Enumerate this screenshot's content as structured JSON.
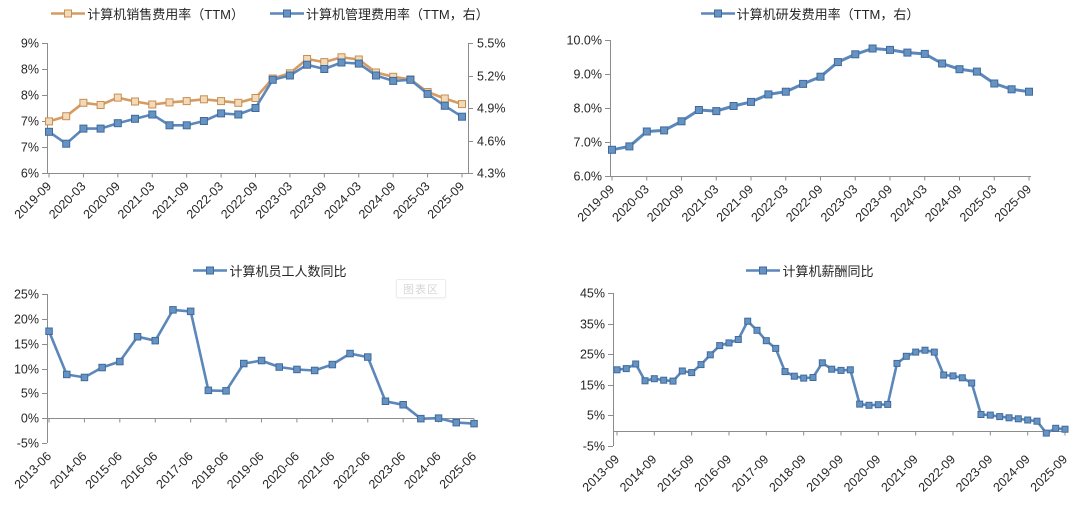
{
  "watermark_tooltip": {
    "label": "图表区"
  },
  "colors": {
    "orange_line": "#D59B62",
    "orange_marker_fill": "#F1DAB8",
    "orange_marker_border": "#C98E53",
    "blue_line": "#5B87BA",
    "blue_marker_fill": "#6793C3",
    "blue_marker_border": "#3F6A9D",
    "axis": "#8C8C8C",
    "label": "#262626"
  },
  "chart_data": [
    {
      "id": "sales-admin-expense-ratio",
      "type": "line",
      "title": "",
      "legend": [
        "计算机销售费用率（TTM）",
        "计算机管理费用率（TTM，右）"
      ],
      "legend_position": "top",
      "grid": false,
      "x": [
        "2019-09",
        "2019-12",
        "2020-03",
        "2020-06",
        "2020-09",
        "2020-12",
        "2021-03",
        "2021-06",
        "2021-09",
        "2021-12",
        "2022-03",
        "2022-06",
        "2022-09",
        "2022-12",
        "2023-03",
        "2023-06",
        "2023-09",
        "2023-12",
        "2024-03",
        "2024-06",
        "2024-09",
        "2024-12",
        "2025-03",
        "2025-06",
        "2025-09"
      ],
      "x_tick_labels": [
        "2019-09",
        "2020-03",
        "2020-09",
        "2021-03",
        "2021-09",
        "2022-03",
        "2022-09",
        "2023-03",
        "2023-09",
        "2024-03",
        "2024-09",
        "2025-03",
        "2025-09"
      ],
      "left_axis": {
        "tick_labels": [
          "9%",
          "8%",
          "8%",
          "7%",
          "7%",
          "6%"
        ],
        "min": 6.0,
        "max": 9.0
      },
      "right_axis": {
        "tick_labels": [
          "5.5%",
          "5.2%",
          "4.9%",
          "4.6%",
          "4.3%"
        ],
        "min": 4.3,
        "max": 5.5
      },
      "series": [
        {
          "name": "计算机销售费用率（TTM）",
          "axis": "left",
          "color_key": "orange",
          "values": [
            7.19,
            7.31,
            7.62,
            7.57,
            7.74,
            7.65,
            7.58,
            7.63,
            7.66,
            7.7,
            7.66,
            7.62,
            7.73,
            8.18,
            8.3,
            8.63,
            8.56,
            8.67,
            8.62,
            8.32,
            8.22,
            8.16,
            7.87,
            7.72,
            7.59
          ]
        },
        {
          "name": "计算机管理费用率（TTM，右）",
          "axis": "right",
          "color_key": "blue",
          "values": [
            4.68,
            4.57,
            4.71,
            4.71,
            4.76,
            4.8,
            4.84,
            4.74,
            4.74,
            4.78,
            4.85,
            4.84,
            4.9,
            5.16,
            5.2,
            5.3,
            5.26,
            5.32,
            5.31,
            5.2,
            5.15,
            5.16,
            5.03,
            4.92,
            4.82
          ]
        }
      ]
    },
    {
      "id": "rd-expense-ratio",
      "type": "line",
      "title": "",
      "legend": [
        "计算机研发费用率（TTM，右）"
      ],
      "legend_position": "top",
      "grid": false,
      "x": [
        "2019-09",
        "2019-12",
        "2020-03",
        "2020-06",
        "2020-09",
        "2020-12",
        "2021-03",
        "2021-06",
        "2021-09",
        "2021-12",
        "2022-03",
        "2022-06",
        "2022-09",
        "2022-12",
        "2023-03",
        "2023-06",
        "2023-09",
        "2023-12",
        "2024-03",
        "2024-06",
        "2024-09",
        "2024-12",
        "2025-03",
        "2025-06",
        "2025-09"
      ],
      "x_tick_labels": [
        "2019-09",
        "2020-03",
        "2020-09",
        "2021-03",
        "2021-09",
        "2022-03",
        "2022-09",
        "2023-03",
        "2023-09",
        "2024-03",
        "2024-09",
        "2025-03",
        "2025-09"
      ],
      "left_axis": {
        "tick_labels": [
          "10.0%",
          "9.0%",
          "8.0%",
          "7.0%",
          "6.0%"
        ],
        "min": 6.0,
        "max": 10.0
      },
      "series": [
        {
          "name": "计算机研发费用率（TTM，右）",
          "axis": "left",
          "color_key": "blue",
          "values": [
            6.77,
            6.87,
            7.31,
            7.34,
            7.61,
            7.94,
            7.91,
            8.06,
            8.18,
            8.4,
            8.48,
            8.71,
            8.92,
            9.35,
            9.58,
            9.75,
            9.71,
            9.63,
            9.59,
            9.31,
            9.14,
            9.07,
            8.72,
            8.55,
            8.48
          ]
        }
      ]
    },
    {
      "id": "headcount-yoy",
      "type": "line",
      "title": "",
      "legend": [
        "计算机员工人数同比"
      ],
      "legend_position": "top",
      "grid": false,
      "axis_cross": 0,
      "x": [
        "2013-06",
        "2013-12",
        "2014-06",
        "2014-12",
        "2015-06",
        "2015-12",
        "2016-06",
        "2016-12",
        "2017-06",
        "2017-12",
        "2018-06",
        "2018-12",
        "2019-06",
        "2019-12",
        "2020-06",
        "2020-12",
        "2021-06",
        "2021-12",
        "2022-06",
        "2022-12",
        "2023-06",
        "2023-12",
        "2024-06",
        "2024-12",
        "2025-06"
      ],
      "x_tick_labels": [
        "2013-06",
        "2014-06",
        "2015-06",
        "2016-06",
        "2017-06",
        "2018-06",
        "2019-06",
        "2020-06",
        "2021-06",
        "2022-06",
        "2023-06",
        "2024-06",
        "2025-06"
      ],
      "left_axis": {
        "tick_labels": [
          "25%",
          "20%",
          "15%",
          "10%",
          "5%",
          "0%",
          "-5%"
        ],
        "min": -5,
        "max": 25
      },
      "series": [
        {
          "name": "计算机员工人数同比",
          "axis": "left",
          "color_key": "blue",
          "values": [
            17.5,
            8.8,
            8.2,
            10.2,
            11.4,
            16.4,
            15.6,
            21.8,
            21.5,
            5.6,
            5.5,
            11.0,
            11.6,
            10.3,
            9.8,
            9.6,
            10.8,
            13.0,
            12.3,
            3.4,
            2.7,
            -0.1,
            0.0,
            -0.9,
            -1.1
          ]
        }
      ]
    },
    {
      "id": "salary-yoy",
      "type": "line",
      "title": "",
      "legend": [
        "计算机薪酬同比"
      ],
      "legend_position": "top",
      "grid": false,
      "axis_cross": 0,
      "x": [
        "2013-09",
        "2013-12",
        "2014-03",
        "2014-06",
        "2014-09",
        "2014-12",
        "2015-03",
        "2015-06",
        "2015-09",
        "2015-12",
        "2016-03",
        "2016-06",
        "2016-09",
        "2016-12",
        "2017-03",
        "2017-06",
        "2017-09",
        "2017-12",
        "2018-03",
        "2018-06",
        "2018-09",
        "2018-12",
        "2019-03",
        "2019-06",
        "2019-09",
        "2019-12",
        "2020-03",
        "2020-06",
        "2020-09",
        "2020-12",
        "2021-03",
        "2021-06",
        "2021-09",
        "2021-12",
        "2022-03",
        "2022-06",
        "2022-09",
        "2022-12",
        "2023-03",
        "2023-06",
        "2023-09",
        "2023-12",
        "2024-03",
        "2024-06",
        "2024-09",
        "2024-12",
        "2025-03",
        "2025-06",
        "2025-09"
      ],
      "x_tick_labels": [
        "2013-09",
        "2014-09",
        "2015-09",
        "2016-09",
        "2017-09",
        "2018-09",
        "2019-09",
        "2020-09",
        "2021-09",
        "2022-09",
        "2023-09",
        "2024-09",
        "2025-09"
      ],
      "left_axis": {
        "tick_labels": [
          "45%",
          "35%",
          "25%",
          "15%",
          "5%",
          "-5%"
        ],
        "min": -5,
        "max": 45
      },
      "series": [
        {
          "name": "计算机薪酬同比",
          "axis": "left",
          "color_key": "blue",
          "values": [
            19.9,
            20.3,
            21.8,
            16.3,
            17.0,
            16.5,
            16.2,
            19.5,
            19.0,
            21.6,
            24.8,
            27.8,
            28.7,
            29.8,
            35.8,
            32.8,
            29.4,
            26.9,
            19.3,
            17.8,
            17.2,
            17.4,
            22.2,
            20.1,
            19.7,
            19.9,
            8.7,
            8.3,
            8.5,
            8.6,
            22.0,
            24.3,
            25.7,
            26.3,
            25.7,
            18.2,
            17.9,
            17.3,
            15.6,
            5.3,
            5.1,
            4.6,
            4.2,
            3.9,
            3.5,
            3.1,
            -0.8,
            0.8,
            0.5
          ]
        }
      ]
    }
  ]
}
